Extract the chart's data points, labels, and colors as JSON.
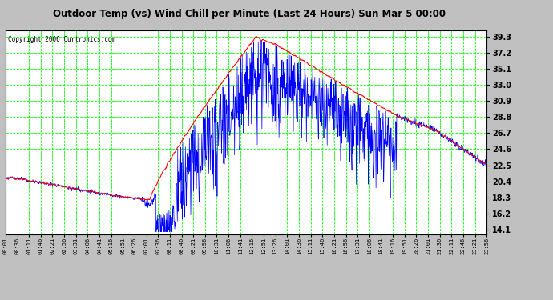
{
  "title": "Outdoor Temp (vs) Wind Chill per Minute (Last 24 Hours) Sun Mar 5 00:00",
  "copyright_text": "Copyright 2006 Curtronics.com",
  "yticks": [
    14.1,
    16.2,
    18.3,
    20.4,
    22.5,
    24.6,
    26.7,
    28.8,
    30.9,
    33.0,
    35.1,
    37.2,
    39.3
  ],
  "ylim": [
    13.5,
    40.2
  ],
  "xtick_labels": [
    "00:01",
    "00:36",
    "01:11",
    "01:46",
    "02:21",
    "02:56",
    "03:31",
    "04:06",
    "04:41",
    "05:16",
    "05:51",
    "06:26",
    "07:01",
    "07:36",
    "08:11",
    "08:46",
    "09:21",
    "09:56",
    "10:31",
    "11:06",
    "11:41",
    "12:16",
    "12:51",
    "13:26",
    "14:01",
    "14:36",
    "15:11",
    "15:46",
    "16:21",
    "16:56",
    "17:31",
    "18:06",
    "18:41",
    "19:16",
    "19:51",
    "20:26",
    "21:01",
    "21:36",
    "22:11",
    "22:46",
    "23:21",
    "23:56"
  ],
  "bg_color": "#ffffff",
  "plot_bg_color": "#ffffff",
  "grid_color": "#00ff00",
  "outer_bg_color": "#c0c0c0",
  "red_line_color": "#ff0000",
  "blue_line_color": "#0000ff",
  "title_color": "#000000",
  "copyright_color": "#000000",
  "figsize": [
    6.9,
    3.75
  ],
  "dpi": 100
}
